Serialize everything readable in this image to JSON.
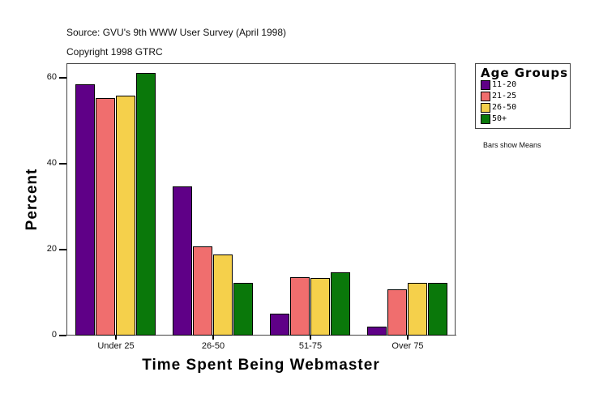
{
  "header": {
    "source": "Source: GVU's 9th WWW User Survey (April 1998)",
    "copyright": "Copyright 1998 GTRC"
  },
  "legend": {
    "title": "Age Groups",
    "items": [
      {
        "label": "11-20",
        "color": "#5f0087"
      },
      {
        "label": "21-25",
        "color": "#f06e6e"
      },
      {
        "label": "26-50",
        "color": "#f5d04b"
      },
      {
        "label": "50+",
        "color": "#0a780a"
      }
    ]
  },
  "note": "Bars show Means",
  "chart_data": {
    "type": "bar",
    "title": "",
    "xlabel": "Time Spent Being Webmaster",
    "ylabel": "Percent",
    "categories": [
      "Under 25",
      "26-50",
      "51-75",
      "Over 75"
    ],
    "series": [
      {
        "name": "11-20",
        "values": [
          58.5,
          34.7,
          5.1,
          2.1
        ]
      },
      {
        "name": "21-25",
        "values": [
          55.3,
          20.7,
          13.6,
          10.8
        ]
      },
      {
        "name": "26-50",
        "values": [
          55.8,
          18.9,
          13.4,
          12.3
        ]
      },
      {
        "name": "50+",
        "values": [
          61.1,
          12.3,
          14.7,
          12.3
        ]
      }
    ],
    "yticks": [
      0,
      20,
      40,
      60
    ],
    "ylim": [
      0,
      63.4
    ],
    "grid": false,
    "legend_position": "right"
  }
}
